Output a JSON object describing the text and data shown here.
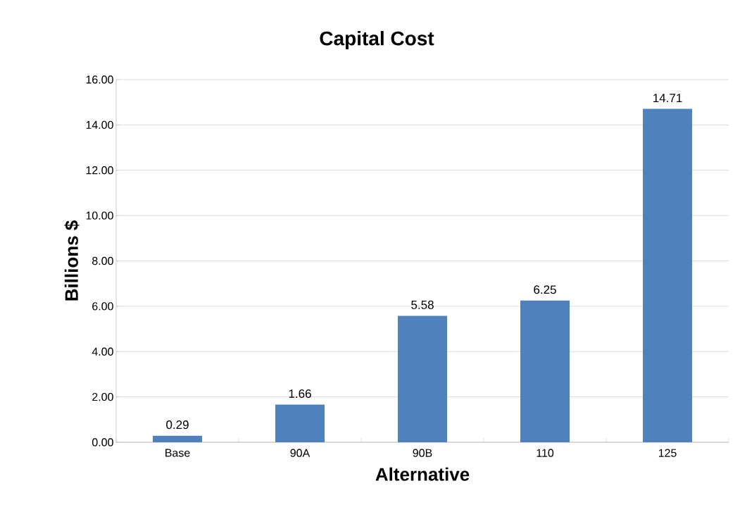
{
  "chart_data": {
    "type": "bar",
    "title": "Capital Cost",
    "xlabel": "Alternative",
    "ylabel": "Billions $",
    "categories": [
      "Base",
      "90A",
      "90B",
      "110",
      "125"
    ],
    "values": [
      0.29,
      1.66,
      5.58,
      6.25,
      14.71
    ],
    "color": "#4f81bd",
    "ylim": [
      0,
      16
    ],
    "yticks": [
      {
        "value": 0,
        "label": "0.00"
      },
      {
        "value": 2,
        "label": "2.00"
      },
      {
        "value": 4,
        "label": "4.00"
      },
      {
        "value": 6,
        "label": "6.00"
      },
      {
        "value": 8,
        "label": "8.00"
      },
      {
        "value": 10,
        "label": "10.00"
      },
      {
        "value": 12,
        "label": "12.00"
      },
      {
        "value": 14,
        "label": "14.00"
      },
      {
        "value": 16,
        "label": "16.00"
      }
    ],
    "grid": "y",
    "data_labels": true
  }
}
